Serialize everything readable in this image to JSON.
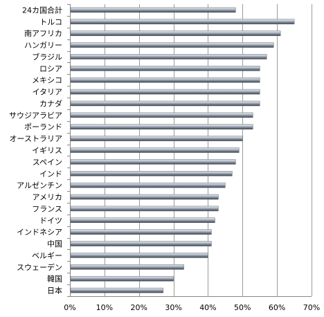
{
  "chart_data": {
    "type": "bar",
    "orientation": "horizontal",
    "categories": [
      "24カ国合計",
      "トルコ",
      "南アフリカ",
      "ハンガリー",
      "ブラジル",
      "ロシア",
      "メキシコ",
      "イタリア",
      "カナダ",
      "サウジアラビア",
      "ポーランド",
      "オーストラリア",
      "イギリス",
      "スペイン",
      "インド",
      "アルゼンチン",
      "アメリカ",
      "フランス",
      "ドイツ",
      "インドネシア",
      "中国",
      "ベルギー",
      "スウェーデン",
      "韓国",
      "日本"
    ],
    "values": [
      48,
      65,
      61,
      59,
      57,
      55,
      55,
      55,
      55,
      53,
      53,
      50,
      49,
      48,
      47,
      45,
      43,
      43,
      42,
      41,
      41,
      40,
      33,
      30,
      27
    ],
    "xlim": [
      0,
      70
    ],
    "xticks": [
      "0%",
      "10%",
      "20%",
      "30%",
      "40%",
      "50%",
      "60%",
      "70%"
    ],
    "grid": true,
    "bar_color": "#9aa3b0"
  }
}
